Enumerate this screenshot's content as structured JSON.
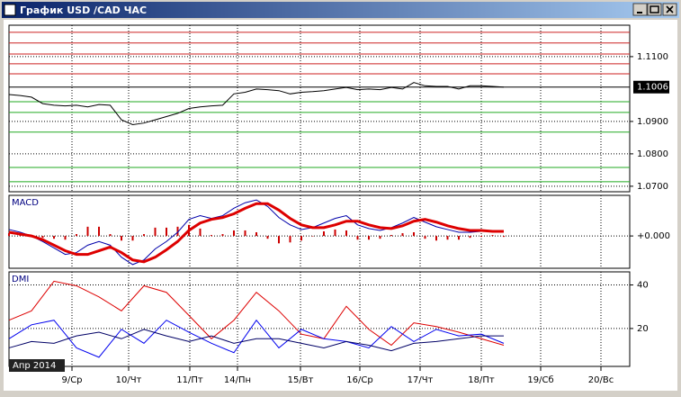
{
  "window": {
    "title": "График USD /CAD ЧАС"
  },
  "chart_data": [
    {
      "type": "line",
      "x": [
        0,
        1,
        2,
        3,
        4,
        5,
        6,
        7,
        8,
        9,
        10,
        11,
        12,
        13,
        14,
        15,
        16,
        17,
        18,
        19,
        20,
        21,
        22,
        23,
        24,
        25,
        26,
        27,
        28,
        29,
        30,
        31,
        32,
        33,
        34,
        35,
        36,
        37,
        38,
        39,
        40,
        41,
        42,
        43,
        44
      ],
      "series": [
        {
          "color": "#000000",
          "values": [
            1.0983,
            1.098,
            1.0975,
            1.0955,
            1.095,
            1.0948,
            1.095,
            1.0945,
            1.0952,
            1.095,
            1.0905,
            1.089,
            1.0895,
            1.0905,
            1.0915,
            1.0925,
            1.094,
            1.0945,
            1.0948,
            1.095,
            1.0985,
            1.099,
            1.1,
            1.0998,
            1.0995,
            1.0985,
            1.099,
            1.0992,
            1.0995,
            1.1,
            1.1005,
            1.0998,
            1.1,
            1.0998,
            1.1005,
            1.1,
            1.102,
            1.101,
            1.1008,
            1.1008,
            1.1,
            1.101,
            1.101,
            1.1008,
            1.1006
          ]
        }
      ],
      "levels": [
        {
          "value": 1.1175,
          "color": "#cc2222"
        },
        {
          "value": 1.1142,
          "color": "#cc2222"
        },
        {
          "value": 1.1108,
          "color": "#cc2222"
        },
        {
          "value": 1.1078,
          "color": "#cc2222"
        },
        {
          "value": 1.1047,
          "color": "#cc2222"
        },
        {
          "value": 1.0961,
          "color": "#22aa22"
        },
        {
          "value": 1.0928,
          "color": "#22aa22"
        },
        {
          "value": 1.0867,
          "color": "#22aa22"
        },
        {
          "value": 1.0758,
          "color": "#22aa22"
        },
        {
          "value": 1.0714,
          "color": "#22aa22"
        }
      ],
      "current_price": 1.1006,
      "xlim": [
        0,
        55.2
      ],
      "ylim": [
        1.0683,
        1.1197
      ],
      "yticks": [
        {
          "value": 1.07,
          "label": "1.0700"
        },
        {
          "value": 1.08,
          "label": "1.0800"
        },
        {
          "value": 1.09,
          "label": "1.0900"
        },
        {
          "value": 1.11,
          "label": "1.1100"
        }
      ]
    },
    {
      "type": "line",
      "title": "MACD",
      "x": [
        0,
        1,
        2,
        3,
        4,
        5,
        6,
        7,
        8,
        9,
        10,
        11,
        12,
        13,
        14,
        15,
        16,
        17,
        18,
        19,
        20,
        21,
        22,
        23,
        24,
        25,
        26,
        27,
        28,
        29,
        30,
        31,
        32,
        33,
        34,
        35,
        36,
        37,
        38,
        39,
        40,
        41,
        42,
        43,
        44
      ],
      "histogram": {
        "color": "#cc0000",
        "values": [
          0.00018,
          0.00012,
          0,
          -0.00012,
          -0.00018,
          -0.00024,
          0.00012,
          0.0006,
          0.0006,
          0.00012,
          -0.0003,
          -0.0003,
          0.00012,
          0.00054,
          0.00054,
          0.0006,
          0.00072,
          0.00048,
          6e-05,
          0.00012,
          0.00036,
          0.00036,
          0.00024,
          -0.00018,
          -0.00048,
          -0.00042,
          -0.0003,
          0,
          0.0003,
          0.00042,
          0.00036,
          -0.00024,
          -0.00024,
          -0.00018,
          6e-05,
          0.00018,
          0.00024,
          -0.00018,
          -0.0003,
          -0.00024,
          -0.00024,
          -0.00012,
          -6e-05,
          6e-05,
          -6e-05
        ]
      },
      "series": [
        {
          "color": "#0000aa",
          "values": [
            0.00042,
            0.00024,
            0,
            -0.00036,
            -0.00078,
            -0.0012,
            -0.00108,
            -0.0006,
            -0.00036,
            -0.0006,
            -0.00138,
            -0.00186,
            -0.00156,
            -0.00084,
            -0.00036,
            0.00024,
            0.00108,
            0.00132,
            0.00114,
            0.00132,
            0.0018,
            0.00216,
            0.00234,
            0.00192,
            0.0012,
            0.00072,
            0.00042,
            0.00054,
            0.00084,
            0.00114,
            0.00132,
            0.00072,
            0.00048,
            0.00036,
            0.00054,
            0.00084,
            0.0012,
            0.0009,
            0.0006,
            0.00042,
            0.00024,
            0.00024,
            0.0003,
            0.00036,
            0.00024
          ]
        },
        {
          "color": "#dd0000",
          "values": [
            0.00024,
            0.00012,
            0,
            -0.00024,
            -0.0006,
            -0.00096,
            -0.0012,
            -0.0012,
            -0.00096,
            -0.00072,
            -0.00108,
            -0.00156,
            -0.00168,
            -0.00138,
            -0.0009,
            -0.00036,
            0.00036,
            0.00084,
            0.00108,
            0.0012,
            0.00144,
            0.0018,
            0.0021,
            0.0021,
            0.00168,
            0.00114,
            0.00072,
            0.00054,
            0.00054,
            0.00072,
            0.00096,
            0.00096,
            0.00072,
            0.00054,
            0.00048,
            0.00066,
            0.00096,
            0.00108,
            0.0009,
            0.00066,
            0.00048,
            0.00036,
            0.00036,
            0.0003,
            0.0003
          ]
        }
      ],
      "xlim": [
        0,
        55.2
      ],
      "ylim": [
        -0.0021,
        0.00264
      ],
      "yticks": [
        {
          "value": 0,
          "label": "+0.000"
        }
      ]
    },
    {
      "type": "line",
      "title": "DMI",
      "x": [
        0,
        2,
        4,
        6,
        8,
        10,
        12,
        14,
        16,
        18,
        20,
        22,
        24,
        26,
        28,
        30,
        32,
        34,
        36,
        38,
        40,
        42,
        44
      ],
      "series": [
        {
          "color": "#dd0000",
          "values": [
            23.8,
            28.1,
            41.7,
            39.6,
            34.5,
            28.1,
            39.6,
            36.6,
            26,
            15.3,
            23.8,
            36.6,
            28.1,
            17.4,
            15.3,
            30.2,
            19.6,
            12.3,
            22.6,
            20.9,
            18.3,
            15.3,
            12.3
          ]
        },
        {
          "color": "#0000ee",
          "values": [
            15.3,
            21.7,
            23.8,
            11.1,
            6.8,
            19.6,
            13.2,
            23.8,
            18.3,
            13.2,
            8.9,
            23.8,
            11.1,
            19.6,
            15.3,
            14,
            11.1,
            20.9,
            14,
            19.6,
            16.6,
            17.4,
            13.2
          ]
        },
        {
          "color": "#000066",
          "values": [
            11.1,
            14,
            13.2,
            16.6,
            18.3,
            15.3,
            19.6,
            16.6,
            14,
            16.6,
            13.2,
            15.3,
            15.3,
            13.2,
            11.1,
            14,
            12.3,
            9.8,
            13.2,
            14,
            15.3,
            16.6,
            16.6
          ]
        }
      ],
      "xlim": [
        0,
        55.2
      ],
      "ylim": [
        2.6,
        46
      ],
      "yticks": [
        20,
        40
      ],
      "xticks": [
        {
          "value": 5.6,
          "label": "9/Ср"
        },
        {
          "value": 10.64,
          "label": "10/Чт"
        },
        {
          "value": 16.08,
          "label": "11/Пт"
        },
        {
          "value": 20.32,
          "label": "14/Пн"
        },
        {
          "value": 25.92,
          "label": "15/Вт"
        },
        {
          "value": 31.2,
          "label": "16/Ср"
        },
        {
          "value": 36.56,
          "label": "17/Чт"
        },
        {
          "value": 42,
          "label": "18/Пт"
        },
        {
          "value": 47.28,
          "label": "19/Сб"
        },
        {
          "value": 52.64,
          "label": "20/Вс"
        }
      ],
      "date_label": "Апр 2014"
    }
  ]
}
